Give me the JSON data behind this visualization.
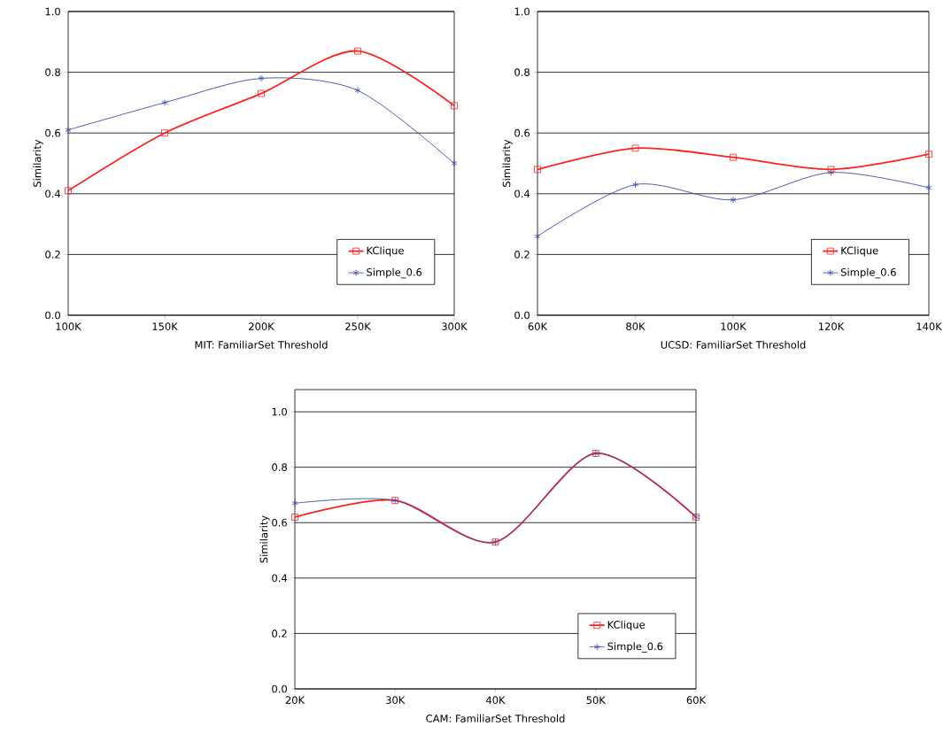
{
  "chart_data": [
    {
      "type": "line",
      "xlabel": "MIT: FamiliarSet Threshold",
      "ylabel": "Similarity",
      "x": [
        100000,
        150000,
        200000,
        250000,
        300000
      ],
      "series": [
        {
          "name": "KClique",
          "color": "#ff2020",
          "marker": "square",
          "values": [
            0.41,
            0.6,
            0.73,
            0.87,
            0.69
          ]
        },
        {
          "name": "Simple_0.6",
          "color": "#3a4aa8",
          "marker": "cross",
          "values": [
            0.61,
            0.7,
            0.78,
            0.74,
            0.5
          ]
        }
      ],
      "xlim": [
        100000,
        300000
      ],
      "xticks": [
        {
          "value": 100000,
          "label": "100K"
        },
        {
          "value": 150000,
          "label": "150K"
        },
        {
          "value": 200000,
          "label": "200K"
        },
        {
          "value": 250000,
          "label": "250K"
        },
        {
          "value": 300000,
          "label": "300K"
        }
      ],
      "ylim": [
        0,
        1
      ],
      "yticks": [
        {
          "value": 0,
          "label": "0.0"
        },
        {
          "value": 0.2,
          "label": "0.2"
        },
        {
          "value": 0.4,
          "label": "0.4"
        },
        {
          "value": 0.6,
          "label": "0.6"
        },
        {
          "value": 0.8,
          "label": "0.8"
        },
        {
          "value": 1,
          "label": "1.0"
        }
      ],
      "grid": "y",
      "legend": "bottom right",
      "line_style": "solid"
    },
    {
      "type": "line",
      "xlabel": "UCSD: FamiliarSet Threshold",
      "ylabel": "Similarity",
      "x": [
        60000,
        80000,
        100000,
        120000,
        140000
      ],
      "series": [
        {
          "name": "KClique",
          "color": "#ff2020",
          "marker": "square",
          "values": [
            0.48,
            0.55,
            0.52,
            0.48,
            0.53
          ]
        },
        {
          "name": "Simple_0.6",
          "color": "#3a4aa8",
          "marker": "cross",
          "values": [
            0.26,
            0.43,
            0.38,
            0.47,
            0.42
          ]
        }
      ],
      "xlim": [
        60000,
        140000
      ],
      "xticks": [
        {
          "value": 60000,
          "label": "60K"
        },
        {
          "value": 80000,
          "label": "80K"
        },
        {
          "value": 100000,
          "label": "100K"
        },
        {
          "value": 120000,
          "label": "120K"
        },
        {
          "value": 140000,
          "label": "140K"
        }
      ],
      "ylim": [
        0,
        1
      ],
      "yticks": [
        {
          "value": 0,
          "label": "0.0"
        },
        {
          "value": 0.2,
          "label": "0.2"
        },
        {
          "value": 0.4,
          "label": "0.4"
        },
        {
          "value": 0.6,
          "label": "0.6"
        },
        {
          "value": 0.8,
          "label": "0.8"
        },
        {
          "value": 1,
          "label": "1.0"
        }
      ],
      "grid": "y",
      "legend": "bottom right",
      "line_style": "solid"
    },
    {
      "type": "line",
      "xlabel": "CAM: FamiliarSet Threshold",
      "ylabel": "Similarity",
      "x": [
        20000,
        30000,
        40000,
        50000,
        60000
      ],
      "series": [
        {
          "name": "KClique",
          "color": "#ff2020",
          "marker": "square",
          "values": [
            0.62,
            0.68,
            0.53,
            0.85,
            0.62
          ]
        },
        {
          "name": "Simple_0.6",
          "color": "#3a4aa8",
          "marker": "cross",
          "values": [
            0.67,
            0.68,
            0.53,
            0.85,
            0.62
          ]
        }
      ],
      "xlim": [
        20000,
        60000
      ],
      "xticks": [
        {
          "value": 20000,
          "label": "20K"
        },
        {
          "value": 30000,
          "label": "30K"
        },
        {
          "value": 40000,
          "label": "40K"
        },
        {
          "value": 50000,
          "label": "50K"
        },
        {
          "value": 60000,
          "label": "60K"
        }
      ],
      "ylim": [
        0,
        1.08
      ],
      "yticks": [
        {
          "value": 0,
          "label": "0.0"
        },
        {
          "value": 0.2,
          "label": "0.2"
        },
        {
          "value": 0.4,
          "label": "0.4"
        },
        {
          "value": 0.6,
          "label": "0.6"
        },
        {
          "value": 0.8,
          "label": "0.8"
        },
        {
          "value": 1,
          "label": "1.0"
        }
      ],
      "grid": "y",
      "legend": "bottom right",
      "line_style": "solid"
    }
  ]
}
